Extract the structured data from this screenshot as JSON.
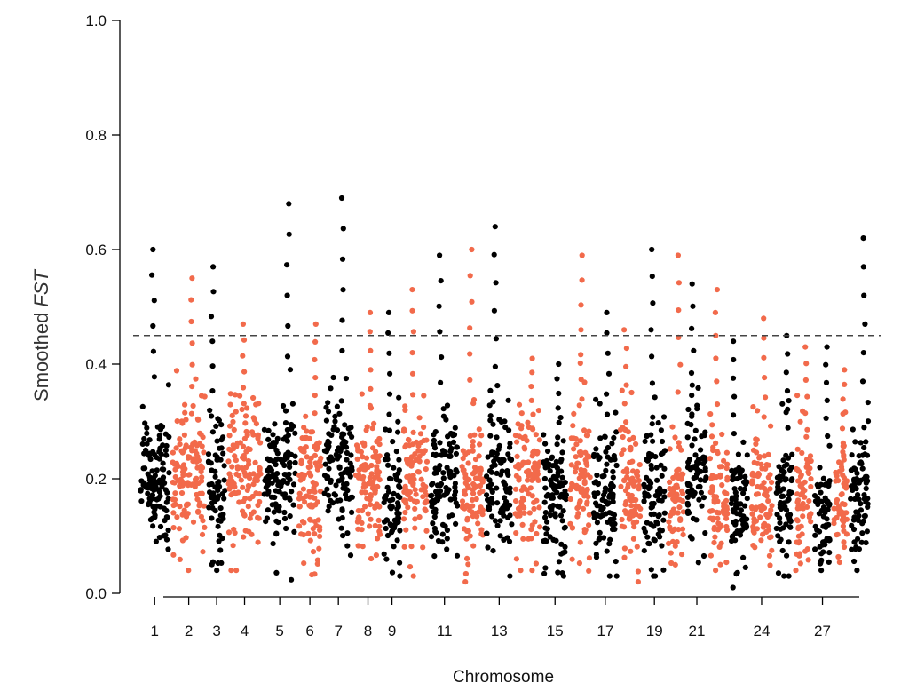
{
  "chart_data": {
    "type": "scatter",
    "title": "",
    "xlabel": "Chromosome",
    "ylabel_prefix": "Smoothed ",
    "ylabel_italic": "FST",
    "ylim": [
      0,
      1
    ],
    "yticks": [
      "0.0",
      "0.2",
      "0.4",
      "0.6",
      "0.8",
      "1.0"
    ],
    "xtick_labels": [
      "1",
      "2",
      "3",
      "4",
      "5",
      "6",
      "7",
      "8",
      "9",
      "11",
      "13",
      "15",
      "17",
      "19",
      "21",
      "24",
      "27"
    ],
    "threshold": 0.45,
    "threshold_style": "dashed",
    "grid": false,
    "legend": "none",
    "colors": {
      "odd": "#000000",
      "even": "#f26a4b"
    },
    "chromosomes": [
      {
        "chr": 1,
        "median": 0.2,
        "peak": 0.6,
        "min": 0.03,
        "color": "#000000",
        "labeled": true
      },
      {
        "chr": 2,
        "median": 0.21,
        "peak": 0.55,
        "min": 0.04,
        "color": "#f26a4b",
        "labeled": true
      },
      {
        "chr": 3,
        "median": 0.18,
        "peak": 0.57,
        "min": 0.04,
        "color": "#000000",
        "labeled": true
      },
      {
        "chr": 4,
        "median": 0.22,
        "peak": 0.47,
        "min": 0.04,
        "color": "#f26a4b",
        "labeled": true
      },
      {
        "chr": 5,
        "median": 0.2,
        "peak": 0.68,
        "min": 0.02,
        "color": "#000000",
        "labeled": true
      },
      {
        "chr": 6,
        "median": 0.19,
        "peak": 0.47,
        "min": 0.02,
        "color": "#f26a4b",
        "labeled": true
      },
      {
        "chr": 7,
        "median": 0.21,
        "peak": 0.69,
        "min": 0.01,
        "color": "#000000",
        "labeled": true
      },
      {
        "chr": 8,
        "median": 0.19,
        "peak": 0.49,
        "min": 0.02,
        "color": "#f26a4b",
        "labeled": true
      },
      {
        "chr": 9,
        "median": 0.17,
        "peak": 0.49,
        "min": 0.03,
        "color": "#000000",
        "labeled": true
      },
      {
        "chr": 10,
        "median": 0.2,
        "peak": 0.53,
        "min": 0.03,
        "color": "#f26a4b",
        "labeled": false
      },
      {
        "chr": 11,
        "median": 0.19,
        "peak": 0.59,
        "min": 0.03,
        "color": "#000000",
        "labeled": true
      },
      {
        "chr": 12,
        "median": 0.19,
        "peak": 0.6,
        "min": 0.02,
        "color": "#f26a4b",
        "labeled": false
      },
      {
        "chr": 13,
        "median": 0.2,
        "peak": 0.64,
        "min": 0.03,
        "color": "#000000",
        "labeled": true
      },
      {
        "chr": 14,
        "median": 0.19,
        "peak": 0.41,
        "min": 0.04,
        "color": "#f26a4b",
        "labeled": false
      },
      {
        "chr": 15,
        "median": 0.17,
        "peak": 0.4,
        "min": 0.03,
        "color": "#000000",
        "labeled": true
      },
      {
        "chr": 16,
        "median": 0.2,
        "peak": 0.59,
        "min": 0.03,
        "color": "#f26a4b",
        "labeled": false
      },
      {
        "chr": 17,
        "median": 0.17,
        "peak": 0.49,
        "min": 0.03,
        "color": "#000000",
        "labeled": true
      },
      {
        "chr": 18,
        "median": 0.17,
        "peak": 0.46,
        "min": 0.02,
        "color": "#f26a4b",
        "labeled": false
      },
      {
        "chr": 19,
        "median": 0.18,
        "peak": 0.6,
        "min": 0.03,
        "color": "#000000",
        "labeled": true
      },
      {
        "chr": 20,
        "median": 0.16,
        "peak": 0.59,
        "min": 0.02,
        "color": "#f26a4b",
        "labeled": false
      },
      {
        "chr": 21,
        "median": 0.19,
        "peak": 0.54,
        "min": 0.05,
        "color": "#000000",
        "labeled": true
      },
      {
        "chr": 22,
        "median": 0.17,
        "peak": 0.53,
        "min": 0.04,
        "color": "#f26a4b",
        "labeled": false
      },
      {
        "chr": 23,
        "median": 0.15,
        "peak": 0.44,
        "min": 0.01,
        "color": "#000000",
        "labeled": false
      },
      {
        "chr": 24,
        "median": 0.17,
        "peak": 0.48,
        "min": 0.02,
        "color": "#f26a4b",
        "labeled": true
      },
      {
        "chr": 25,
        "median": 0.16,
        "peak": 0.45,
        "min": 0.03,
        "color": "#000000",
        "labeled": false
      },
      {
        "chr": 26,
        "median": 0.17,
        "peak": 0.43,
        "min": 0.04,
        "color": "#f26a4b",
        "labeled": false
      },
      {
        "chr": 27,
        "median": 0.15,
        "peak": 0.43,
        "min": 0.04,
        "color": "#000000",
        "labeled": true
      },
      {
        "chr": 28,
        "median": 0.16,
        "peak": 0.39,
        "min": 0.04,
        "color": "#f26a4b",
        "labeled": false
      },
      {
        "chr": 29,
        "median": 0.17,
        "peak": 0.62,
        "min": 0.04,
        "color": "#000000",
        "labeled": false
      }
    ]
  }
}
